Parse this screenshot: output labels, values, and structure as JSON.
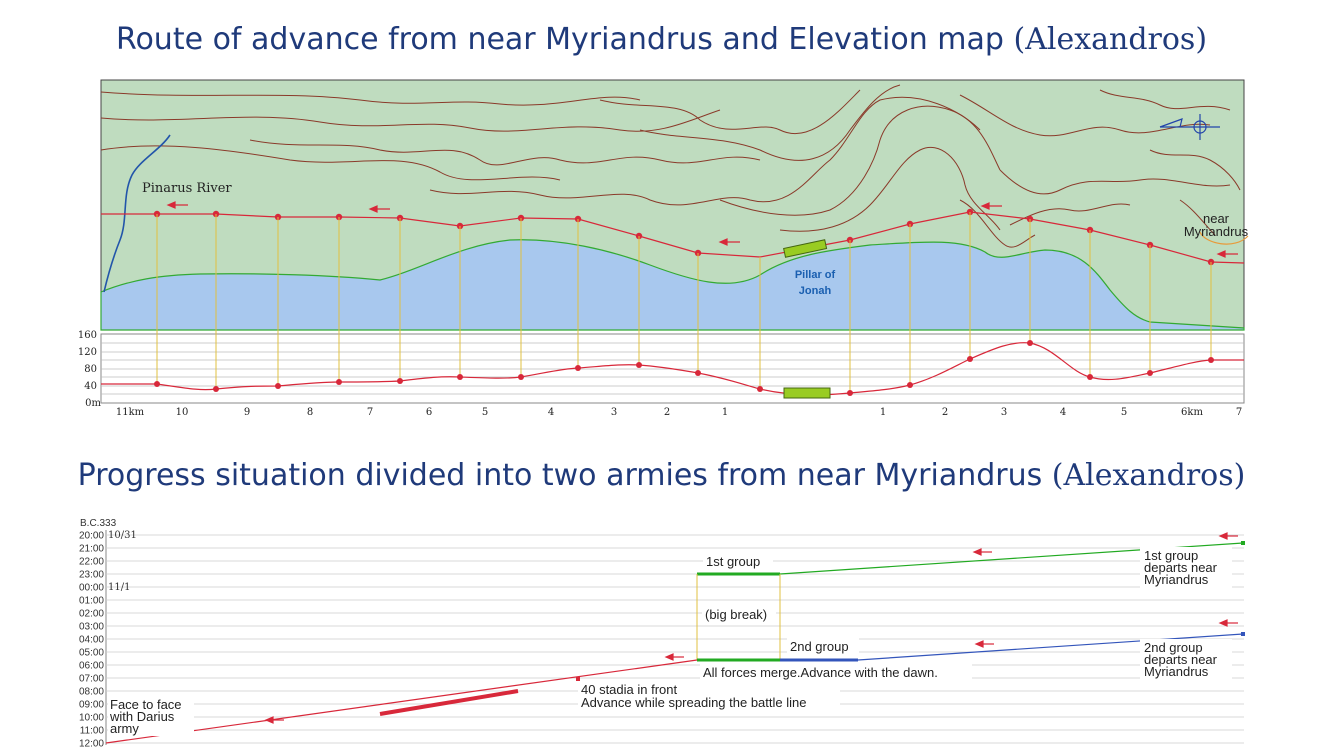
{
  "titles": {
    "map_prefix": "Route of advance from near Myriandrus and Elevation map ",
    "map_suffix": "(Alexandros)",
    "progress_prefix": "Progress situation divided into two armies from near Myriandrus ",
    "progress_suffix": "(Alexandros)"
  },
  "map": {
    "river_label": "Pinarus River",
    "pillar_label_1": "Pillar of",
    "pillar_label_2": "Jonah",
    "start_label_1": "near",
    "start_label_2": "Myriandrus",
    "colors": {
      "land": "#bfdcbf",
      "sea": "#a8c8ee",
      "contour": "#8a3a2a",
      "route": "#d8283a",
      "coast": "#33aa33",
      "river": "#2255aa",
      "pillar": "#99cc22"
    }
  },
  "elevation": {
    "y_ticks": [
      "160",
      "120",
      "80",
      "40",
      "0m"
    ],
    "x_labels_left": [
      "11km",
      "10",
      "9",
      "8",
      "7",
      "6",
      "5",
      "4",
      "3",
      "2",
      "1"
    ],
    "x_labels_right": [
      "1",
      "2",
      "3",
      "4",
      "5",
      "6km",
      "7"
    ]
  },
  "timeline": {
    "year": "B.C.333",
    "hours": [
      "20:00",
      "21:00",
      "22:00",
      "23:00",
      "00:00",
      "01:00",
      "02:00",
      "03:00",
      "04:00",
      "05:00",
      "06:00",
      "07:00",
      "08:00",
      "09:00",
      "10:00",
      "11:00",
      "12:00"
    ],
    "date1": "10/31",
    "date2": "11/1",
    "first_group": "1st group",
    "big_break": "(big break)",
    "second_group": "2nd group",
    "merge_note": "All forces merge.Advance with the dawn.",
    "first_depart_1": "1st group",
    "first_depart_2": "departs near",
    "first_depart_3": "Myriandrus",
    "second_depart_1": "2nd group",
    "second_depart_2": "departs near",
    "second_depart_3": "Myriandrus",
    "stadia_1": "40 stadia in front",
    "stadia_2": "Advance while spreading the battle line",
    "face_1": "Face to face",
    "face_2": "with Darius",
    "face_3": "army",
    "colors": {
      "green": "#22aa22",
      "blue": "#3355bb",
      "red": "#d8283a"
    }
  }
}
